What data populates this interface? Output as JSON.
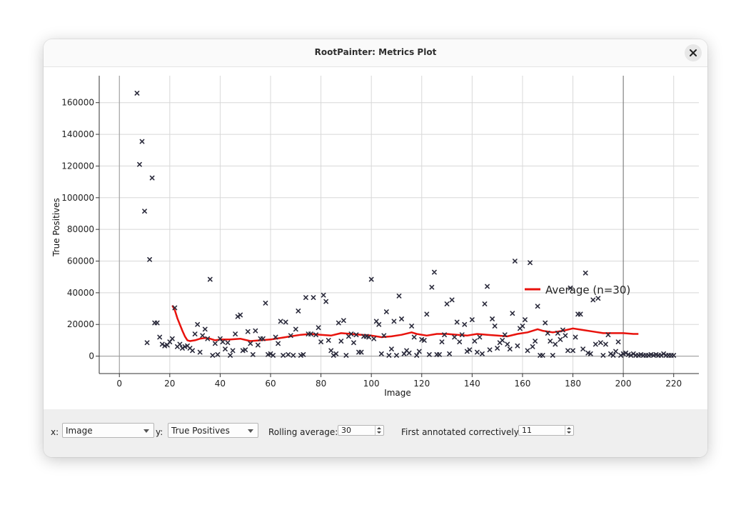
{
  "window": {
    "title": "RootPainter: Metrics Plot"
  },
  "controls": {
    "x_label": "x:",
    "x_value": "Image",
    "y_label": "y:",
    "y_value": "True Positives",
    "rolling_label": "Rolling average:",
    "rolling_value": "30",
    "first_label": "First annotated correctively:",
    "first_value": "11"
  },
  "icons": {
    "close": "close-icon",
    "dropdown": "chevron-down-icon"
  },
  "colors": {
    "points": "#2b2b3c",
    "average_line": "#e8120c",
    "vline": "#707070"
  },
  "chart_data": {
    "type": "scatter",
    "xlabel": "Image",
    "ylabel": "True Positives",
    "xlim": [
      -8,
      230
    ],
    "ylim": [
      -11000,
      177000
    ],
    "x_ticks": [
      0,
      20,
      40,
      60,
      80,
      100,
      120,
      140,
      160,
      180,
      200,
      220
    ],
    "y_ticks": [
      0,
      20000,
      40000,
      60000,
      80000,
      100000,
      120000,
      140000,
      160000
    ],
    "grid": true,
    "vertical_marker_x": 200,
    "legend": {
      "label": "Average (n=30)",
      "placement": "right"
    },
    "series": [
      {
        "name": "True Positives",
        "marker": "x",
        "points": [
          [
            7,
            166000
          ],
          [
            8,
            121000
          ],
          [
            9,
            135500
          ],
          [
            10,
            91500
          ],
          [
            11,
            8500
          ],
          [
            12,
            61000
          ],
          [
            13,
            112500
          ],
          [
            14,
            21000
          ],
          [
            15,
            21000
          ],
          [
            16,
            12000
          ],
          [
            17,
            7500
          ],
          [
            18,
            6500
          ],
          [
            19,
            7000
          ],
          [
            20,
            9000
          ],
          [
            21,
            11000
          ],
          [
            22,
            30500
          ],
          [
            23,
            6000
          ],
          [
            24,
            7500
          ],
          [
            25,
            5000
          ],
          [
            26,
            6000
          ],
          [
            27,
            6500
          ],
          [
            28,
            5000
          ],
          [
            29,
            3500
          ],
          [
            30,
            14000
          ],
          [
            31,
            20000
          ],
          [
            32,
            2500
          ],
          [
            33,
            13000
          ],
          [
            34,
            17000
          ],
          [
            35,
            11000
          ],
          [
            36,
            48500
          ],
          [
            37,
            500
          ],
          [
            38,
            8000
          ],
          [
            39,
            1000
          ],
          [
            40,
            11000
          ],
          [
            41,
            9000
          ],
          [
            42,
            4500
          ],
          [
            43,
            8500
          ],
          [
            44,
            500
          ],
          [
            45,
            3500
          ],
          [
            46,
            14000
          ],
          [
            47,
            25000
          ],
          [
            48,
            26000
          ],
          [
            49,
            3500
          ],
          [
            50,
            4000
          ],
          [
            51,
            15500
          ],
          [
            52,
            8000
          ],
          [
            53,
            1000
          ],
          [
            54,
            16000
          ],
          [
            55,
            7000
          ],
          [
            56,
            11000
          ],
          [
            57,
            11000
          ],
          [
            58,
            33500
          ],
          [
            59,
            1000
          ],
          [
            60,
            1500
          ],
          [
            61,
            500
          ],
          [
            62,
            12000
          ],
          [
            63,
            8000
          ],
          [
            64,
            22000
          ],
          [
            65,
            500
          ],
          [
            66,
            21500
          ],
          [
            67,
            1000
          ],
          [
            68,
            13000
          ],
          [
            69,
            500
          ],
          [
            70,
            17000
          ],
          [
            71,
            28500
          ],
          [
            72,
            500
          ],
          [
            73,
            1000
          ],
          [
            74,
            37000
          ],
          [
            75,
            14000
          ],
          [
            76,
            14000
          ],
          [
            77,
            37000
          ],
          [
            78,
            13500
          ],
          [
            79,
            18000
          ],
          [
            80,
            9000
          ],
          [
            81,
            38500
          ],
          [
            82,
            34500
          ],
          [
            83,
            10000
          ],
          [
            84,
            3500
          ],
          [
            85,
            500
          ],
          [
            86,
            1500
          ],
          [
            87,
            21000
          ],
          [
            88,
            9500
          ],
          [
            89,
            22500
          ],
          [
            90,
            500
          ],
          [
            91,
            12500
          ],
          [
            92,
            14000
          ],
          [
            93,
            8500
          ],
          [
            94,
            13500
          ],
          [
            95,
            2500
          ],
          [
            96,
            2500
          ],
          [
            97,
            12500
          ],
          [
            98,
            12500
          ],
          [
            99,
            12000
          ],
          [
            100,
            48500
          ],
          [
            101,
            11000
          ],
          [
            102,
            22000
          ],
          [
            103,
            20000
          ],
          [
            104,
            1500
          ],
          [
            105,
            13000
          ],
          [
            106,
            28000
          ],
          [
            107,
            500
          ],
          [
            108,
            4500
          ],
          [
            109,
            22000
          ],
          [
            110,
            500
          ],
          [
            111,
            38000
          ],
          [
            112,
            23500
          ],
          [
            113,
            1500
          ],
          [
            114,
            3500
          ],
          [
            115,
            2000
          ],
          [
            116,
            19000
          ],
          [
            117,
            12000
          ],
          [
            118,
            500
          ],
          [
            119,
            3000
          ],
          [
            120,
            10500
          ],
          [
            121,
            10000
          ],
          [
            122,
            26500
          ],
          [
            123,
            1000
          ],
          [
            124,
            43500
          ],
          [
            125,
            53000
          ],
          [
            126,
            1000
          ],
          [
            127,
            1000
          ],
          [
            128,
            9000
          ],
          [
            129,
            13500
          ],
          [
            130,
            33000
          ],
          [
            131,
            1500
          ],
          [
            132,
            35500
          ],
          [
            133,
            12000
          ],
          [
            134,
            21500
          ],
          [
            135,
            9000
          ],
          [
            136,
            13500
          ],
          [
            137,
            20000
          ],
          [
            138,
            3000
          ],
          [
            139,
            4000
          ],
          [
            140,
            23000
          ],
          [
            141,
            9500
          ],
          [
            142,
            2500
          ],
          [
            143,
            12000
          ],
          [
            144,
            1500
          ],
          [
            145,
            33000
          ],
          [
            146,
            44000
          ],
          [
            147,
            4000
          ],
          [
            148,
            23500
          ],
          [
            149,
            19000
          ],
          [
            150,
            5000
          ],
          [
            151,
            8500
          ],
          [
            152,
            10000
          ],
          [
            153,
            13500
          ],
          [
            154,
            7500
          ],
          [
            155,
            4500
          ],
          [
            156,
            27000
          ],
          [
            157,
            60000
          ],
          [
            158,
            6500
          ],
          [
            159,
            17500
          ],
          [
            160,
            19000
          ],
          [
            161,
            23000
          ],
          [
            162,
            3500
          ],
          [
            163,
            59000
          ],
          [
            164,
            6000
          ],
          [
            165,
            9500
          ],
          [
            166,
            31500
          ],
          [
            167,
            500
          ],
          [
            168,
            500
          ],
          [
            169,
            21000
          ],
          [
            170,
            14500
          ],
          [
            171,
            9500
          ],
          [
            172,
            500
          ],
          [
            173,
            7500
          ],
          [
            174,
            14500
          ],
          [
            175,
            10500
          ],
          [
            176,
            16500
          ],
          [
            177,
            13000
          ],
          [
            178,
            3500
          ],
          [
            179,
            43000
          ],
          [
            180,
            3500
          ],
          [
            181,
            12000
          ],
          [
            182,
            26500
          ],
          [
            183,
            26500
          ],
          [
            184,
            4500
          ],
          [
            185,
            52500
          ],
          [
            186,
            2000
          ],
          [
            187,
            1500
          ],
          [
            188,
            35500
          ],
          [
            189,
            7500
          ],
          [
            190,
            36500
          ],
          [
            191,
            8500
          ],
          [
            192,
            500
          ],
          [
            193,
            7500
          ],
          [
            194,
            13500
          ],
          [
            195,
            1500
          ],
          [
            196,
            500
          ],
          [
            197,
            3000
          ],
          [
            198,
            9000
          ],
          [
            199,
            500
          ],
          [
            200,
            1500
          ],
          [
            201,
            2000
          ],
          [
            202,
            1000
          ],
          [
            203,
            500
          ],
          [
            204,
            1500
          ],
          [
            205,
            500
          ],
          [
            206,
            500
          ],
          [
            207,
            1000
          ],
          [
            208,
            500
          ],
          [
            209,
            500
          ],
          [
            210,
            500
          ],
          [
            211,
            1000
          ],
          [
            212,
            500
          ],
          [
            213,
            1000
          ],
          [
            214,
            500
          ],
          [
            215,
            500
          ],
          [
            216,
            1500
          ],
          [
            217,
            500
          ],
          [
            218,
            500
          ],
          [
            219,
            500
          ],
          [
            220,
            500
          ]
        ]
      },
      {
        "name": "Average (n=30)",
        "type": "line",
        "points": [
          [
            21,
            32000
          ],
          [
            22,
            29000
          ],
          [
            23,
            24000
          ],
          [
            24,
            20000
          ],
          [
            25,
            16000
          ],
          [
            26,
            12500
          ],
          [
            27,
            10000
          ],
          [
            28,
            9500
          ],
          [
            30,
            10000
          ],
          [
            32,
            11000
          ],
          [
            34,
            11500
          ],
          [
            36,
            11000
          ],
          [
            38,
            10000
          ],
          [
            40,
            10500
          ],
          [
            44,
            10500
          ],
          [
            48,
            11000
          ],
          [
            52,
            9500
          ],
          [
            56,
            10000
          ],
          [
            60,
            10500
          ],
          [
            64,
            11500
          ],
          [
            68,
            12500
          ],
          [
            72,
            13500
          ],
          [
            76,
            14000
          ],
          [
            80,
            13500
          ],
          [
            84,
            13000
          ],
          [
            88,
            14500
          ],
          [
            92,
            14000
          ],
          [
            96,
            13500
          ],
          [
            100,
            13000
          ],
          [
            104,
            12000
          ],
          [
            108,
            12500
          ],
          [
            112,
            13500
          ],
          [
            116,
            15000
          ],
          [
            118,
            14000
          ],
          [
            122,
            13000
          ],
          [
            126,
            14000
          ],
          [
            130,
            14000
          ],
          [
            134,
            13500
          ],
          [
            138,
            13000
          ],
          [
            142,
            14000
          ],
          [
            146,
            13500
          ],
          [
            150,
            13000
          ],
          [
            154,
            12500
          ],
          [
            158,
            14000
          ],
          [
            162,
            15000
          ],
          [
            166,
            17000
          ],
          [
            168,
            16000
          ],
          [
            172,
            15000
          ],
          [
            176,
            16000
          ],
          [
            180,
            17500
          ],
          [
            184,
            16500
          ],
          [
            188,
            15500
          ],
          [
            192,
            14500
          ],
          [
            196,
            14500
          ],
          [
            200,
            14500
          ],
          [
            204,
            14000
          ],
          [
            206,
            14000
          ]
        ]
      }
    ]
  }
}
